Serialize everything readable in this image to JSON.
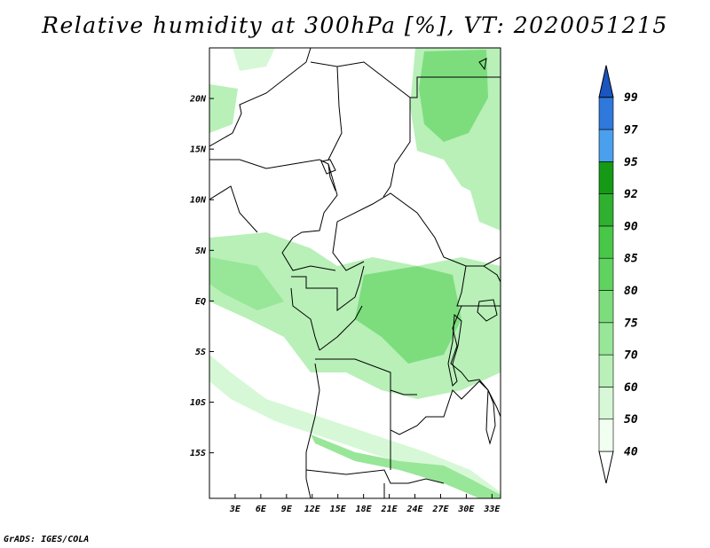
{
  "title": "Relative humidity at 300hPa [%], VT: 2020051215",
  "credit": "GrADS: IGES/COLA",
  "map": {
    "lat_range": [
      -19.5,
      25
    ],
    "lon_range": [
      0,
      34
    ],
    "lat_ticks": [
      {
        "value": 20,
        "label": "20N"
      },
      {
        "value": 15,
        "label": "15N"
      },
      {
        "value": 10,
        "label": "10N"
      },
      {
        "value": 5,
        "label": "5N"
      },
      {
        "value": 0,
        "label": "EQ"
      },
      {
        "value": -5,
        "label": "5S"
      },
      {
        "value": -10,
        "label": "10S"
      },
      {
        "value": -15,
        "label": "15S"
      }
    ],
    "lon_ticks": [
      {
        "value": 3,
        "label": "3E"
      },
      {
        "value": 6,
        "label": "6E"
      },
      {
        "value": 9,
        "label": "9E"
      },
      {
        "value": 12,
        "label": "12E"
      },
      {
        "value": 15,
        "label": "15E"
      },
      {
        "value": 18,
        "label": "18E"
      },
      {
        "value": 21,
        "label": "21E"
      },
      {
        "value": 24,
        "label": "24E"
      },
      {
        "value": 27,
        "label": "27E"
      },
      {
        "value": 30,
        "label": "30E"
      },
      {
        "value": 33,
        "label": "33E"
      }
    ]
  },
  "colorbar": {
    "levels": [
      {
        "label": "40",
        "color": "#f0fff0"
      },
      {
        "label": "50",
        "color": "#d6f8d6"
      },
      {
        "label": "60",
        "color": "#b8f0b8"
      },
      {
        "label": "70",
        "color": "#98e698"
      },
      {
        "label": "75",
        "color": "#7ddd7d"
      },
      {
        "label": "80",
        "color": "#5fd25f"
      },
      {
        "label": "85",
        "color": "#48c748"
      },
      {
        "label": "90",
        "color": "#2fb02f"
      },
      {
        "label": "92",
        "color": "#169a16"
      },
      {
        "label": "95",
        "color": "#4aa0ee"
      },
      {
        "label": "97",
        "color": "#2f78dc"
      },
      {
        "label": "99",
        "color": "#1f5fcc"
      }
    ],
    "below_color": "#ffffff",
    "above_color": "#1a55c0"
  }
}
